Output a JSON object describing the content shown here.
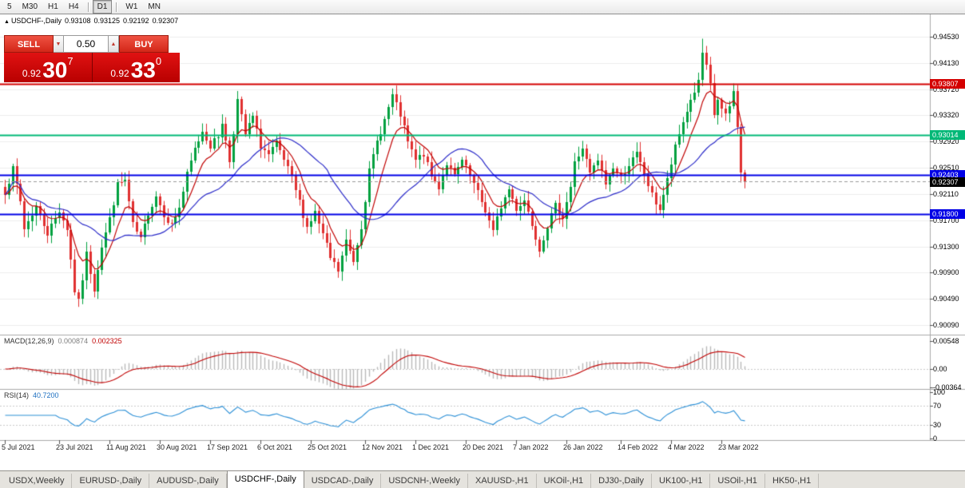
{
  "window": {
    "title": "USDCHF-,Daily"
  },
  "toolbar": {
    "items": [
      {
        "label": "5",
        "active": false,
        "sep_before": false
      },
      {
        "label": "M30",
        "active": false,
        "sep_before": false
      },
      {
        "label": "H1",
        "active": false,
        "sep_before": false
      },
      {
        "label": "H4",
        "active": false,
        "sep_before": false
      },
      {
        "label": "D1",
        "active": true,
        "sep_before": true
      },
      {
        "label": "W1",
        "active": false,
        "sep_before": true
      },
      {
        "label": "MN",
        "active": false,
        "sep_before": false
      }
    ]
  },
  "chart": {
    "header": {
      "expand_icon": "▲",
      "symbol": "USDCHF-,Daily",
      "open": "0.93108",
      "high": "0.93125",
      "low": "0.92192",
      "close": "0.92307"
    }
  },
  "trade_panel": {
    "sell_label": "SELL",
    "buy_label": "BUY",
    "volume": "0.50",
    "spin_down_icon": "▼",
    "spin_up_icon": "▲",
    "sell_price_prefix": "0.92",
    "sell_price_main": "30",
    "sell_price_sup": "7",
    "buy_price_prefix": "0.92",
    "buy_price_main": "33",
    "buy_price_sup": "0",
    "panel_color": "#c80000",
    "button_color": "#e23b2e"
  },
  "price_axis": {
    "ticks": [
      "0.94530",
      "0.94130",
      "0.93720",
      "0.93320",
      "0.92920",
      "0.92510",
      "0.92110",
      "0.91700",
      "0.91300",
      "0.90900",
      "0.90490",
      "0.90090"
    ]
  },
  "levels": [
    {
      "value": "0.93807",
      "price": 0.93807,
      "color": "#d40000",
      "name": "resistance-line-red"
    },
    {
      "value": "0.93014",
      "price": 0.93014,
      "color": "#00b877",
      "name": "level-line-green"
    },
    {
      "value": "0.92403",
      "price": 0.92403,
      "color": "#0000e6",
      "name": "level-line-blue-upper"
    },
    {
      "value": "0.91800",
      "price": 0.918,
      "color": "#0000e6",
      "name": "level-line-blue-lower"
    }
  ],
  "current_price": {
    "value": "0.92307",
    "price": 0.92307,
    "color": "#000000"
  },
  "indicators": {
    "macd": {
      "label": "MACD(12,26,9)",
      "value_main": "0.000874",
      "value_signal": "0.002325",
      "axis": [
        "0.00548",
        "0.00",
        "-0.00364"
      ],
      "hist_color": "#b9b9b9",
      "signal_color": "#c00000"
    },
    "rsi": {
      "label": "RSI(14)",
      "value": "40.7200",
      "axis": [
        "100",
        "70",
        "30",
        "0"
      ],
      "line_color": "#2b8fd6",
      "level_lines": [
        70,
        30
      ]
    }
  },
  "dates": [
    [
      0,
      "5 Jul 2021"
    ],
    [
      14,
      "23 Jul 2021"
    ],
    [
      27,
      "11 Aug 2021"
    ],
    [
      40,
      "30 Aug 2021"
    ],
    [
      53,
      "17 Sep 2021"
    ],
    [
      66,
      "6 Oct 2021"
    ],
    [
      79,
      "25 Oct 2021"
    ],
    [
      93,
      "12 Nov 2021"
    ],
    [
      106,
      "1 Dec 2021"
    ],
    [
      119,
      "20 Dec 2021"
    ],
    [
      132,
      "7 Jan 2022"
    ],
    [
      145,
      "26 Jan 2022"
    ],
    [
      159,
      "14 Feb 2022"
    ],
    [
      172,
      "4 Mar 2022"
    ],
    [
      185,
      "23 Mar 2022"
    ]
  ],
  "tabs": {
    "active_index": 3,
    "items": [
      "USDX,Weekly",
      "EURUSD-,Daily",
      "AUDUSD-,Daily",
      "USDCHF-,Daily",
      "USDCAD-,Daily",
      "USDCNH-,Weekly",
      "XAUUSD-,H1",
      "UKOil-,H1",
      "DJ30-,Daily",
      "UK100-,H1",
      "USOil-,H1",
      "HK50-,H1"
    ]
  },
  "chart_data": {
    "type": "candlestick",
    "symbol": "USDCHF",
    "timeframe": "Daily",
    "up_color": "#00a13f",
    "down_color": "#e03030",
    "ma_fast": {
      "period": 8,
      "color": "#c00000"
    },
    "ma_slow": {
      "period": 24,
      "color": "#2a2ac8"
    },
    "last_close": 0.92307,
    "price_anchors": [
      [
        0,
        0.9215
      ],
      [
        2,
        0.9248
      ],
      [
        4,
        0.92
      ],
      [
        5,
        0.9158
      ],
      [
        8,
        0.9192
      ],
      [
        11,
        0.915
      ],
      [
        14,
        0.9186
      ],
      [
        16,
        0.9158
      ],
      [
        18,
        0.9062
      ],
      [
        19,
        0.9044
      ],
      [
        21,
        0.9118
      ],
      [
        23,
        0.9065
      ],
      [
        25,
        0.913
      ],
      [
        27,
        0.9172
      ],
      [
        29,
        0.9225
      ],
      [
        31,
        0.9232
      ],
      [
        33,
        0.9163
      ],
      [
        35,
        0.914
      ],
      [
        37,
        0.9182
      ],
      [
        39,
        0.9208
      ],
      [
        41,
        0.918
      ],
      [
        43,
        0.9162
      ],
      [
        45,
        0.919
      ],
      [
        47,
        0.924
      ],
      [
        49,
        0.928
      ],
      [
        51,
        0.9308
      ],
      [
        53,
        0.9285
      ],
      [
        55,
        0.93
      ],
      [
        56,
        0.9322
      ],
      [
        58,
        0.9262
      ],
      [
        60,
        0.9355
      ],
      [
        62,
        0.9302
      ],
      [
        64,
        0.933
      ],
      [
        66,
        0.9285
      ],
      [
        68,
        0.927
      ],
      [
        70,
        0.9288
      ],
      [
        72,
        0.9262
      ],
      [
        74,
        0.9235
      ],
      [
        76,
        0.9198
      ],
      [
        78,
        0.916
      ],
      [
        80,
        0.9182
      ],
      [
        82,
        0.9148
      ],
      [
        84,
        0.9112
      ],
      [
        86,
        0.9092
      ],
      [
        88,
        0.9138
      ],
      [
        90,
        0.9108
      ],
      [
        92,
        0.9162
      ],
      [
        94,
        0.9245
      ],
      [
        96,
        0.9292
      ],
      [
        98,
        0.9325
      ],
      [
        100,
        0.9362
      ],
      [
        102,
        0.9332
      ],
      [
        104,
        0.929
      ],
      [
        106,
        0.9262
      ],
      [
        108,
        0.9272
      ],
      [
        110,
        0.9238
      ],
      [
        112,
        0.9222
      ],
      [
        114,
        0.9258
      ],
      [
        116,
        0.9238
      ],
      [
        118,
        0.9262
      ],
      [
        120,
        0.9238
      ],
      [
        122,
        0.9212
      ],
      [
        124,
        0.9186
      ],
      [
        126,
        0.9152
      ],
      [
        128,
        0.9192
      ],
      [
        130,
        0.9218
      ],
      [
        132,
        0.9188
      ],
      [
        134,
        0.9202
      ],
      [
        136,
        0.9165
      ],
      [
        138,
        0.9126
      ],
      [
        140,
        0.9162
      ],
      [
        142,
        0.9192
      ],
      [
        144,
        0.9176
      ],
      [
        146,
        0.9222
      ],
      [
        147,
        0.9258
      ],
      [
        149,
        0.9282
      ],
      [
        151,
        0.9242
      ],
      [
        153,
        0.9262
      ],
      [
        155,
        0.9226
      ],
      [
        157,
        0.9252
      ],
      [
        159,
        0.9236
      ],
      [
        161,
        0.9256
      ],
      [
        163,
        0.9272
      ],
      [
        165,
        0.9242
      ],
      [
        167,
        0.9208
      ],
      [
        169,
        0.9188
      ],
      [
        171,
        0.9232
      ],
      [
        173,
        0.9282
      ],
      [
        175,
        0.9322
      ],
      [
        177,
        0.9356
      ],
      [
        179,
        0.9382
      ],
      [
        180,
        0.9428
      ],
      [
        181,
        0.9405
      ],
      [
        182,
        0.9378
      ],
      [
        183,
        0.9332
      ],
      [
        184,
        0.9356
      ],
      [
        185,
        0.934
      ],
      [
        186,
        0.933
      ],
      [
        187,
        0.9346
      ],
      [
        188,
        0.9368
      ],
      [
        189,
        0.9318
      ],
      [
        190,
        0.9242
      ],
      [
        191,
        0.92307
      ]
    ],
    "wick_overrides": [
      [
        19,
        "low",
        0.9037
      ],
      [
        86,
        "low",
        0.9086
      ],
      [
        180,
        "high",
        0.945
      ],
      [
        188,
        "high",
        0.9381
      ]
    ]
  }
}
